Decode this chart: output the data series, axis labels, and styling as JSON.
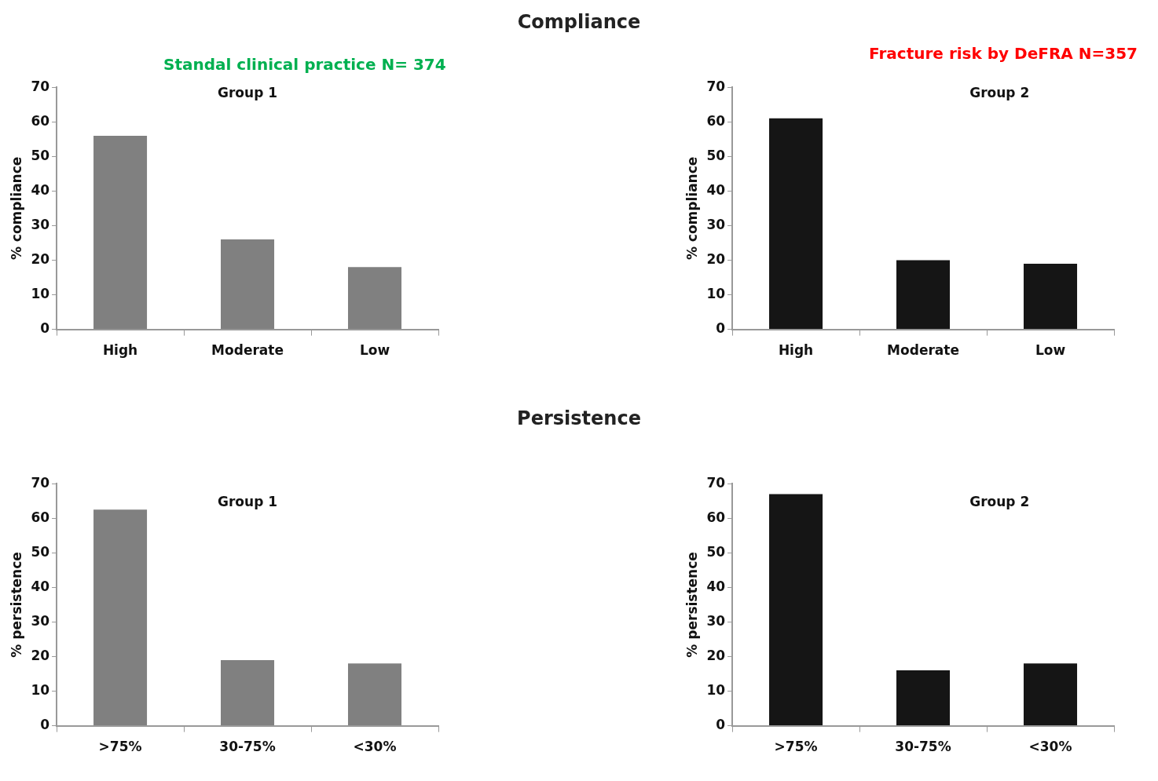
{
  "chart_data": [
    {
      "type": "bar",
      "title": "Group 1",
      "subtitle": "Standal clinical practice N= 374",
      "annotations": [
        "Compliance"
      ],
      "ylabel": "% compliance",
      "categories": [
        "High",
        "Moderate",
        "Low"
      ],
      "values": [
        56,
        26,
        18
      ],
      "color": "#808080",
      "ylim": [
        0,
        70
      ],
      "yticks": [
        0,
        10,
        20,
        30,
        40,
        50,
        60,
        70
      ],
      "grid": false
    },
    {
      "type": "bar",
      "title": "Group 2",
      "subtitle": "Fracture risk by DeFRA  N=357",
      "ylabel": "% compliance",
      "categories": [
        "High",
        "Moderate",
        "Low"
      ],
      "values": [
        61,
        20,
        19
      ],
      "color": "#151515",
      "ylim": [
        0,
        70
      ],
      "yticks": [
        0,
        10,
        20,
        30,
        40,
        50,
        60,
        70
      ],
      "grid": false
    },
    {
      "type": "bar",
      "title": "Group 1",
      "annotations": [
        "Persistence"
      ],
      "ylabel": "% persistence",
      "categories": [
        ">75%",
        "30-75%",
        "<30%"
      ],
      "values": [
        62.5,
        19,
        18
      ],
      "color": "#808080",
      "ylim": [
        0,
        70
      ],
      "yticks": [
        0,
        10,
        20,
        30,
        40,
        50,
        60,
        70
      ],
      "grid": false
    },
    {
      "type": "bar",
      "title": "Group 2",
      "ylabel": "% persistence",
      "categories": [
        ">75%",
        "30-75%",
        "<30%"
      ],
      "values": [
        67,
        16,
        18
      ],
      "color": "#151515",
      "ylim": [
        0,
        70
      ],
      "yticks": [
        0,
        10,
        20,
        30,
        40,
        50,
        60,
        70
      ],
      "grid": false
    }
  ]
}
